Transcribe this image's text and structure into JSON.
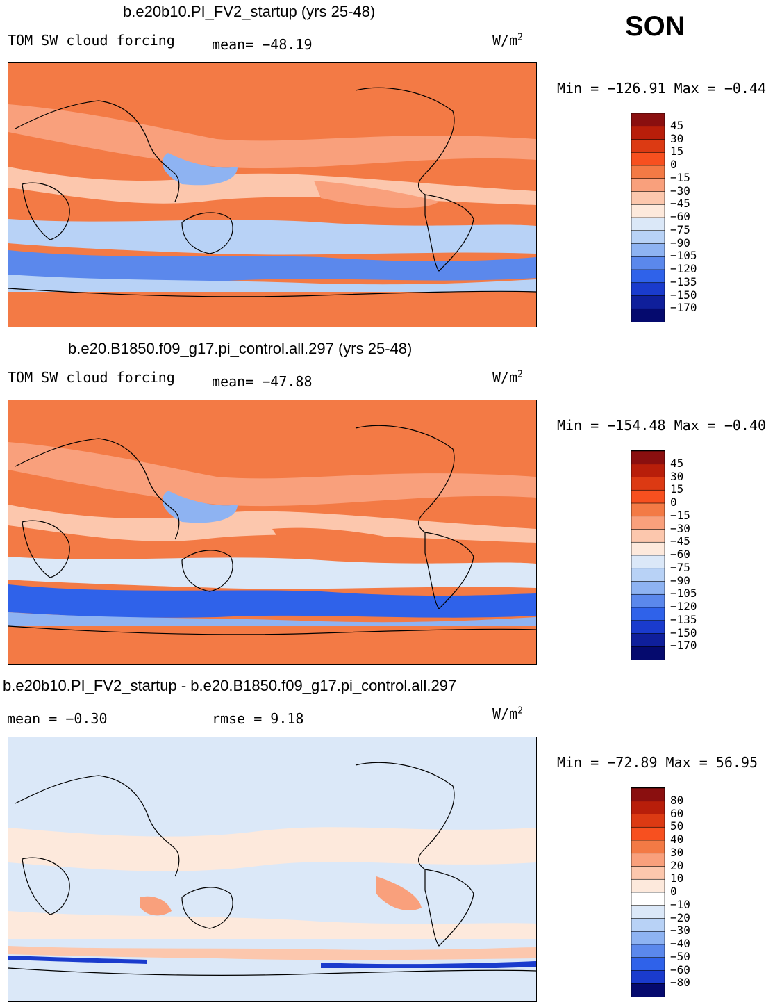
{
  "season": "SON",
  "chart_data": [
    {
      "type": "heatmap",
      "title": "b.e20b10.PI_FV2_startup (yrs 25-48)",
      "left_label": "TOM SW cloud forcing",
      "stat_label": "mean= −48.19",
      "units": "W/m",
      "units_exp": "2",
      "minmax": "Min = −126.91 Max =  −0.44",
      "levels": [
        "45",
        "30",
        "15",
        "0",
        "−15",
        "−30",
        "−45",
        "−60",
        "−75",
        "−90",
        "−105",
        "−120",
        "−135",
        "−150",
        "−170"
      ],
      "colors": [
        "#8a0f0f",
        "#b81e0a",
        "#dc3a13",
        "#f7501f",
        "#f37a45",
        "#f9a07c",
        "#fcc7ad",
        "#fde9dc",
        "#dbe8f8",
        "#b8d2f6",
        "#8eb3f2",
        "#5b88ec",
        "#2f62ea",
        "#1a3bcd",
        "#0f1f9b",
        "#050a6e"
      ],
      "mean_value": -48.19,
      "min_value": -126.91,
      "max_value": -0.44
    },
    {
      "type": "heatmap",
      "title": "b.e20.B1850.f09_g17.pi_control.all.297 (yrs 25-48)",
      "left_label": "TOM SW cloud forcing",
      "stat_label": "mean= −47.88",
      "units": "W/m",
      "units_exp": "2",
      "minmax": "Min = −154.48 Max =  −0.40",
      "levels": [
        "45",
        "30",
        "15",
        "0",
        "−15",
        "−30",
        "−45",
        "−60",
        "−75",
        "−90",
        "−105",
        "−120",
        "−135",
        "−150",
        "−170"
      ],
      "colors": [
        "#8a0f0f",
        "#b81e0a",
        "#dc3a13",
        "#f7501f",
        "#f37a45",
        "#f9a07c",
        "#fcc7ad",
        "#fde9dc",
        "#dbe8f8",
        "#b8d2f6",
        "#8eb3f2",
        "#5b88ec",
        "#2f62ea",
        "#1a3bcd",
        "#0f1f9b",
        "#050a6e"
      ],
      "mean_value": -47.88,
      "min_value": -154.48,
      "max_value": -0.4
    },
    {
      "type": "heatmap",
      "title": "b.e20b10.PI_FV2_startup - b.e20.B1850.f09_g17.pi_control.all.297",
      "left_label": "mean =   −0.30",
      "stat_label": "rmse =    9.18",
      "units": "W/m",
      "units_exp": "2",
      "minmax": "Min = −72.89 Max =  56.95",
      "levels": [
        "80",
        "60",
        "50",
        "40",
        "30",
        "20",
        "10",
        "0",
        "−10",
        "−20",
        "−30",
        "−40",
        "−50",
        "−60",
        "−80"
      ],
      "colors": [
        "#8a0f0f",
        "#b81e0a",
        "#dc3a13",
        "#f7501f",
        "#f37a45",
        "#f9a07c",
        "#fcc7ad",
        "#fde9dc",
        "#ffffff",
        "#dbe8f8",
        "#b8d2f6",
        "#8eb3f2",
        "#5b88ec",
        "#2f62ea",
        "#1a3bcd",
        "#050a6e"
      ],
      "mean_value": -0.3,
      "rmse_value": 9.18,
      "min_value": -72.89,
      "max_value": 56.95
    }
  ]
}
